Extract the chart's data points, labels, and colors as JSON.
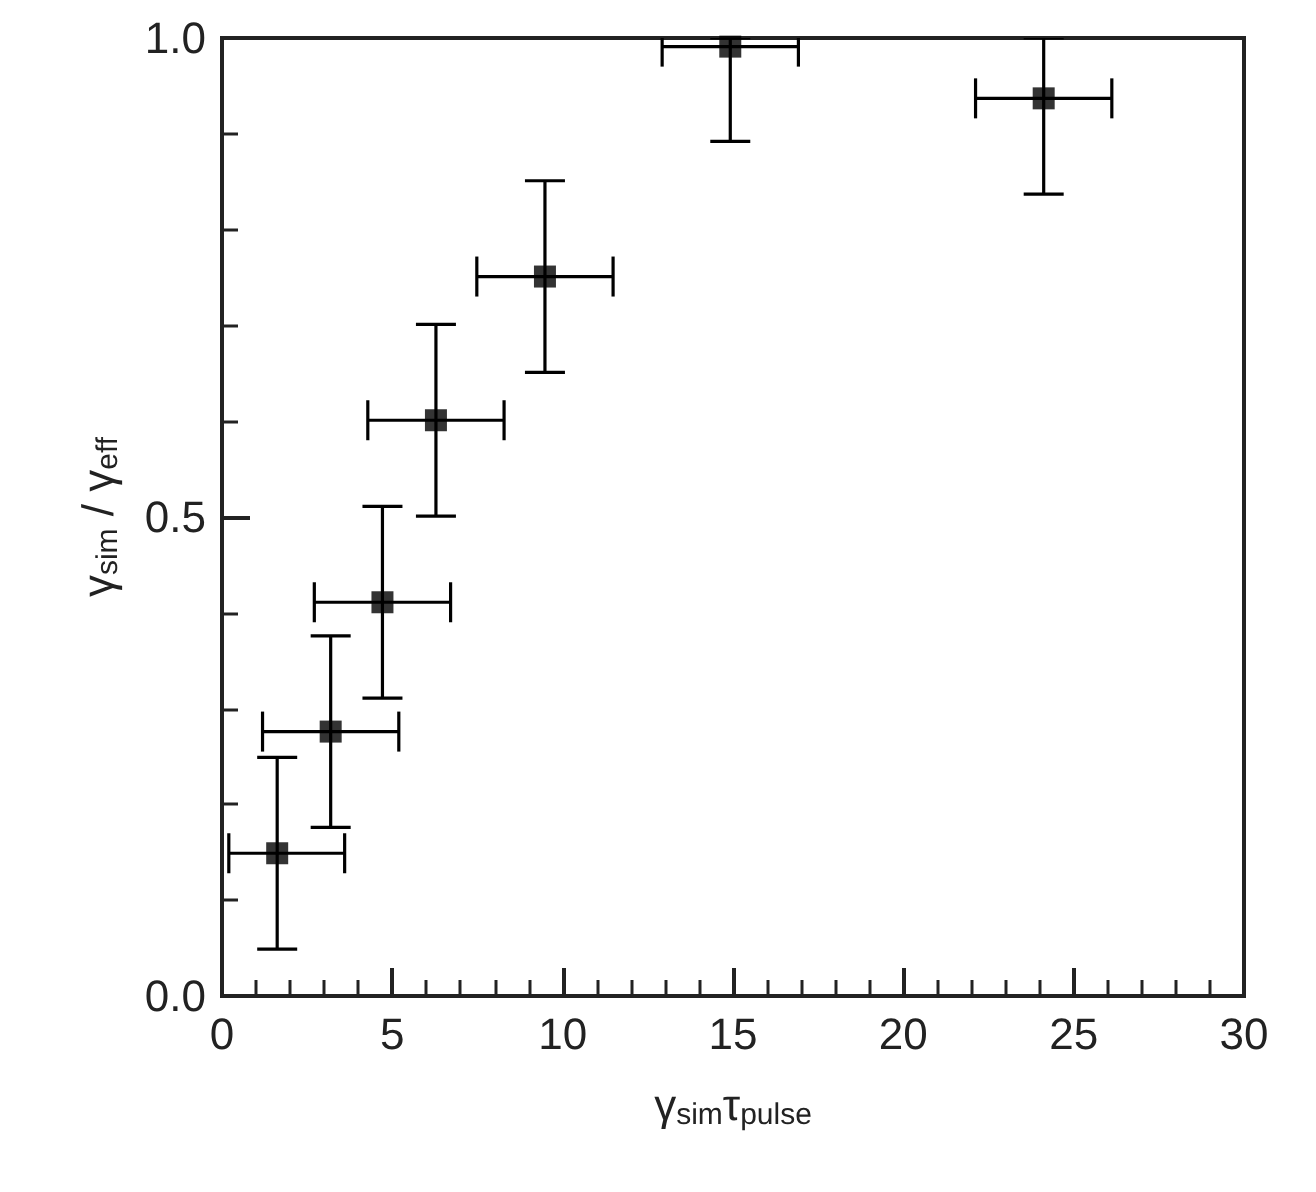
{
  "chart_data": {
    "type": "scatter",
    "xlabel": "γ$_{sim}$τ$_{pulse}$",
    "ylabel": "γ$_{sim}$ / γ$_{eff}$",
    "x": [
      1.62,
      3.19,
      4.71,
      6.28,
      9.48,
      14.92,
      24.12
    ],
    "values": [
      0.149,
      0.276,
      0.411,
      0.601,
      0.751,
      0.991,
      0.937
    ],
    "errors": [
      0.1,
      0.1,
      0.1,
      0.1,
      0.1,
      [
        0.892,
        1.0
      ],
      [
        0.837,
        1.0
      ]
    ],
    "xerrors": [
      [
        0.2,
        3.6
      ],
      2,
      2,
      2,
      2,
      2,
      2
    ],
    "color": "#000000",
    "marker": "square",
    "xlim": [
      0,
      30
    ],
    "xticks": [
      0,
      5,
      10,
      15,
      20,
      25,
      30
    ],
    "ylim": [
      0,
      1
    ],
    "yticks": [
      {
        "value": 0,
        "label": "0.0"
      },
      {
        "value": 0.5,
        "label": "0.5"
      },
      {
        "value": 1,
        "label": "1.0"
      }
    ],
    "grid": false
  }
}
